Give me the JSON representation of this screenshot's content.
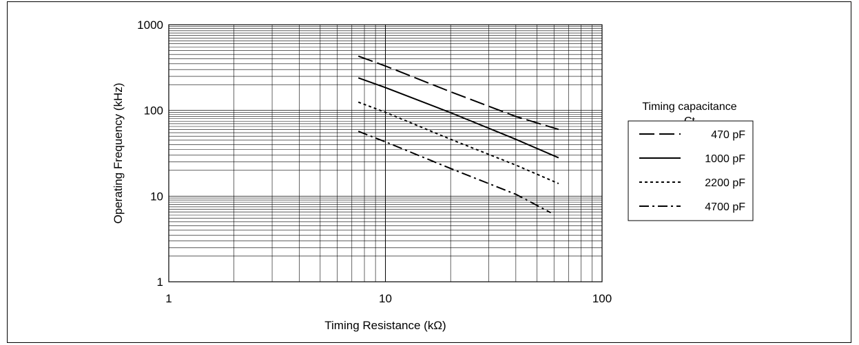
{
  "chart_data": {
    "type": "line",
    "title": "",
    "xlabel": "Timing Resistance   (kΩ)",
    "ylabel": "Operating Frequency   (kHz)",
    "xscale": "log",
    "yscale": "log",
    "xlim": [
      1,
      100
    ],
    "ylim": [
      1,
      1000
    ],
    "x_ticks": [
      "1",
      "10",
      "100"
    ],
    "y_ticks": [
      "1",
      "10",
      "100",
      "1000"
    ],
    "grid": true,
    "legend_title": [
      "Timing capacitance",
      "Ct"
    ],
    "legend_position": "right",
    "series": [
      {
        "name": "470 pF",
        "dash": "long-dash",
        "x": [
          7.5,
          10,
          20,
          40,
          63
        ],
        "y": [
          430,
          330,
          165,
          85,
          60
        ]
      },
      {
        "name": "1000 pF",
        "dash": "solid",
        "x": [
          7.5,
          10,
          20,
          40,
          63
        ],
        "y": [
          240,
          185,
          94,
          46,
          28
        ]
      },
      {
        "name": "2200 pF",
        "dash": "short-dash",
        "x": [
          7.5,
          10,
          20,
          40,
          63
        ],
        "y": [
          125,
          95,
          46,
          23,
          14
        ]
      },
      {
        "name": "4700 pF",
        "dash": "dash-dot",
        "x": [
          7.5,
          10,
          20,
          40,
          58
        ],
        "y": [
          57,
          43,
          21,
          10.5,
          6.4
        ]
      }
    ]
  }
}
